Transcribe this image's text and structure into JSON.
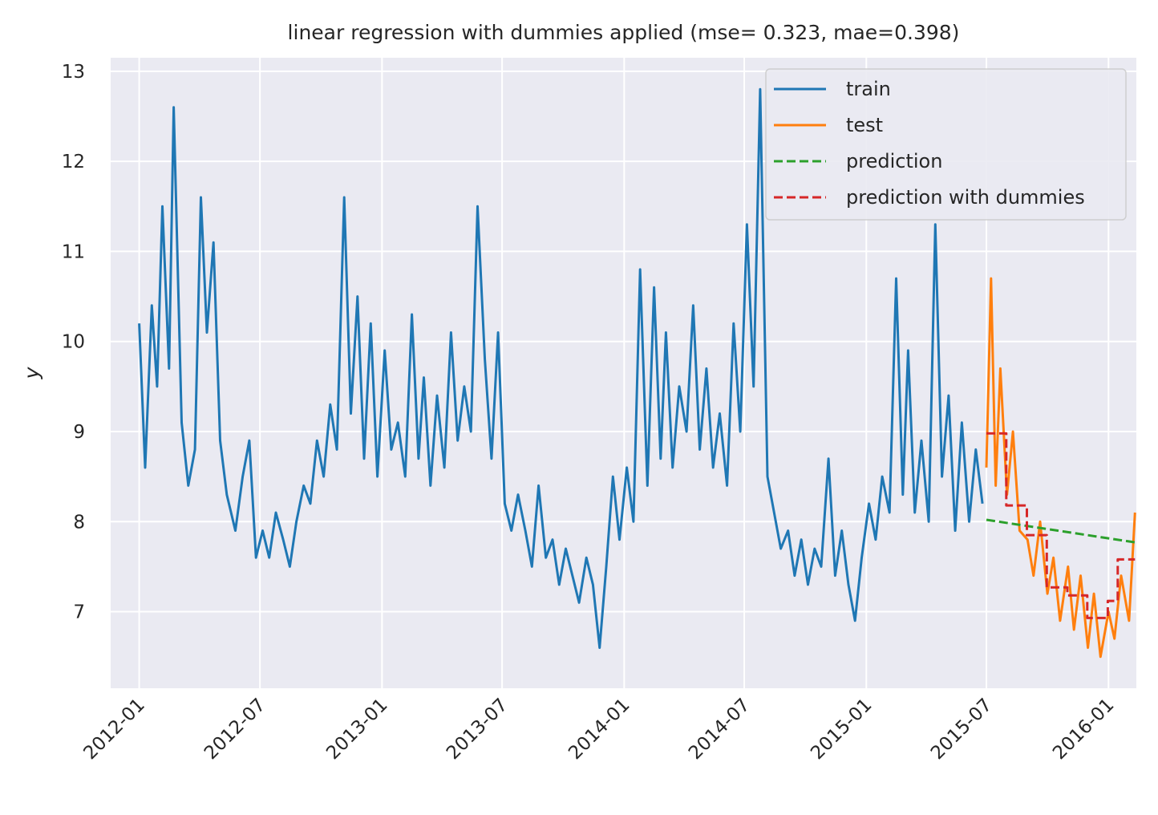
{
  "chart_data": {
    "type": "line",
    "title": "linear regression with dummies applied (mse= 0.323, mae=0.398)",
    "xlabel": "",
    "ylabel": "y",
    "ylim": [
      6.15,
      13.15
    ],
    "xlim": [
      "2011-11-19",
      "2016-02-12"
    ],
    "grid": true,
    "legend_position": "top-right",
    "x_ticks": [
      "2012-01",
      "2012-07",
      "2013-01",
      "2013-07",
      "2014-01",
      "2014-07",
      "2015-01",
      "2015-07",
      "2016-01"
    ],
    "y_ticks": [
      7,
      8,
      9,
      10,
      11,
      12,
      13
    ],
    "series": [
      {
        "name": "train",
        "color": "#1f77b4",
        "style": "solid",
        "points": [
          [
            "2012-01-01",
            10.2
          ],
          [
            "2012-01-10",
            8.6
          ],
          [
            "2012-01-20",
            10.4
          ],
          [
            "2012-01-28",
            9.5
          ],
          [
            "2012-02-05",
            11.5
          ],
          [
            "2012-02-15",
            9.7
          ],
          [
            "2012-02-22",
            12.6
          ],
          [
            "2012-03-05",
            9.1
          ],
          [
            "2012-03-15",
            8.4
          ],
          [
            "2012-03-25",
            8.8
          ],
          [
            "2012-04-03",
            11.6
          ],
          [
            "2012-04-12",
            10.1
          ],
          [
            "2012-04-22",
            11.1
          ],
          [
            "2012-05-02",
            8.9
          ],
          [
            "2012-05-12",
            8.3
          ],
          [
            "2012-05-25",
            7.9
          ],
          [
            "2012-06-05",
            8.5
          ],
          [
            "2012-06-15",
            8.9
          ],
          [
            "2012-06-25",
            7.6
          ],
          [
            "2012-07-05",
            7.9
          ],
          [
            "2012-07-15",
            7.6
          ],
          [
            "2012-07-25",
            8.1
          ],
          [
            "2012-08-05",
            7.8
          ],
          [
            "2012-08-15",
            7.5
          ],
          [
            "2012-08-25",
            8.0
          ],
          [
            "2012-09-05",
            8.4
          ],
          [
            "2012-09-15",
            8.2
          ],
          [
            "2012-09-25",
            8.9
          ],
          [
            "2012-10-05",
            8.5
          ],
          [
            "2012-10-15",
            9.3
          ],
          [
            "2012-10-25",
            8.8
          ],
          [
            "2012-11-05",
            11.6
          ],
          [
            "2012-11-15",
            9.2
          ],
          [
            "2012-11-25",
            10.5
          ],
          [
            "2012-12-05",
            8.7
          ],
          [
            "2012-12-15",
            10.2
          ],
          [
            "2012-12-25",
            8.5
          ],
          [
            "2013-01-05",
            9.9
          ],
          [
            "2013-01-15",
            8.8
          ],
          [
            "2013-01-25",
            9.1
          ],
          [
            "2013-02-05",
            8.5
          ],
          [
            "2013-02-15",
            10.3
          ],
          [
            "2013-02-25",
            8.7
          ],
          [
            "2013-03-05",
            9.6
          ],
          [
            "2013-03-15",
            8.4
          ],
          [
            "2013-03-25",
            9.4
          ],
          [
            "2013-04-05",
            8.6
          ],
          [
            "2013-04-15",
            10.1
          ],
          [
            "2013-04-25",
            8.9
          ],
          [
            "2013-05-05",
            9.5
          ],
          [
            "2013-05-15",
            9.0
          ],
          [
            "2013-05-25",
            11.5
          ],
          [
            "2013-06-05",
            9.8
          ],
          [
            "2013-06-15",
            8.7
          ],
          [
            "2013-06-25",
            10.1
          ],
          [
            "2013-07-05",
            8.2
          ],
          [
            "2013-07-15",
            7.9
          ],
          [
            "2013-07-25",
            8.3
          ],
          [
            "2013-08-05",
            7.9
          ],
          [
            "2013-08-15",
            7.5
          ],
          [
            "2013-08-25",
            8.4
          ],
          [
            "2013-09-05",
            7.6
          ],
          [
            "2013-09-15",
            7.8
          ],
          [
            "2013-09-25",
            7.3
          ],
          [
            "2013-10-05",
            7.7
          ],
          [
            "2013-10-15",
            7.4
          ],
          [
            "2013-10-25",
            7.1
          ],
          [
            "2013-11-05",
            7.6
          ],
          [
            "2013-11-15",
            7.3
          ],
          [
            "2013-11-25",
            6.6
          ],
          [
            "2013-12-05",
            7.5
          ],
          [
            "2013-12-15",
            8.5
          ],
          [
            "2013-12-25",
            7.8
          ],
          [
            "2014-01-05",
            8.6
          ],
          [
            "2014-01-15",
            8.0
          ],
          [
            "2014-01-25",
            10.8
          ],
          [
            "2014-02-05",
            8.4
          ],
          [
            "2014-02-15",
            10.6
          ],
          [
            "2014-02-25",
            8.7
          ],
          [
            "2014-03-05",
            10.1
          ],
          [
            "2014-03-15",
            8.6
          ],
          [
            "2014-03-25",
            9.5
          ],
          [
            "2014-04-05",
            9.0
          ],
          [
            "2014-04-15",
            10.4
          ],
          [
            "2014-04-25",
            8.8
          ],
          [
            "2014-05-05",
            9.7
          ],
          [
            "2014-05-15",
            8.6
          ],
          [
            "2014-05-25",
            9.2
          ],
          [
            "2014-06-05",
            8.4
          ],
          [
            "2014-06-15",
            10.2
          ],
          [
            "2014-06-25",
            9.0
          ],
          [
            "2014-07-05",
            11.3
          ],
          [
            "2014-07-15",
            9.5
          ],
          [
            "2014-07-25",
            12.8
          ],
          [
            "2014-08-05",
            8.5
          ],
          [
            "2014-08-15",
            8.1
          ],
          [
            "2014-08-25",
            7.7
          ],
          [
            "2014-09-05",
            7.9
          ],
          [
            "2014-09-15",
            7.4
          ],
          [
            "2014-09-25",
            7.8
          ],
          [
            "2014-10-05",
            7.3
          ],
          [
            "2014-10-15",
            7.7
          ],
          [
            "2014-10-25",
            7.5
          ],
          [
            "2014-11-05",
            8.7
          ],
          [
            "2014-11-15",
            7.4
          ],
          [
            "2014-11-25",
            7.9
          ],
          [
            "2014-12-05",
            7.3
          ],
          [
            "2014-12-15",
            6.9
          ],
          [
            "2014-12-25",
            7.6
          ],
          [
            "2015-01-05",
            8.2
          ],
          [
            "2015-01-15",
            7.8
          ],
          [
            "2015-01-25",
            8.5
          ],
          [
            "2015-02-05",
            8.1
          ],
          [
            "2015-02-15",
            10.7
          ],
          [
            "2015-02-25",
            8.3
          ],
          [
            "2015-03-05",
            9.9
          ],
          [
            "2015-03-15",
            8.1
          ],
          [
            "2015-03-25",
            8.9
          ],
          [
            "2015-04-05",
            8.0
          ],
          [
            "2015-04-15",
            11.3
          ],
          [
            "2015-04-25",
            8.5
          ],
          [
            "2015-05-05",
            9.4
          ],
          [
            "2015-05-15",
            7.9
          ],
          [
            "2015-05-25",
            9.1
          ],
          [
            "2015-06-05",
            8.0
          ],
          [
            "2015-06-15",
            8.8
          ],
          [
            "2015-06-25",
            8.2
          ]
        ]
      },
      {
        "name": "test",
        "color": "#ff7f0e",
        "style": "solid",
        "points": [
          [
            "2015-07-01",
            8.6
          ],
          [
            "2015-07-08",
            10.7
          ],
          [
            "2015-07-15",
            8.4
          ],
          [
            "2015-07-22",
            9.7
          ],
          [
            "2015-08-01",
            8.3
          ],
          [
            "2015-08-10",
            9.0
          ],
          [
            "2015-08-20",
            7.9
          ],
          [
            "2015-09-01",
            7.8
          ],
          [
            "2015-09-10",
            7.4
          ],
          [
            "2015-09-20",
            8.0
          ],
          [
            "2015-10-01",
            7.2
          ],
          [
            "2015-10-10",
            7.6
          ],
          [
            "2015-10-20",
            6.9
          ],
          [
            "2015-11-01",
            7.5
          ],
          [
            "2015-11-10",
            6.8
          ],
          [
            "2015-11-20",
            7.4
          ],
          [
            "2015-12-01",
            6.6
          ],
          [
            "2015-12-10",
            7.2
          ],
          [
            "2015-12-20",
            6.5
          ],
          [
            "2016-01-01",
            7.0
          ],
          [
            "2016-01-10",
            6.7
          ],
          [
            "2016-01-20",
            7.4
          ],
          [
            "2016-02-01",
            6.9
          ],
          [
            "2016-02-10",
            8.1
          ]
        ]
      },
      {
        "name": "prediction",
        "color": "#2ca02c",
        "style": "dashed",
        "points": [
          [
            "2015-07-01",
            8.02
          ],
          [
            "2016-02-10",
            7.77
          ]
        ]
      },
      {
        "name": "prediction with dummies",
        "color": "#d62728",
        "style": "dashed",
        "points": [
          [
            "2015-07-01",
            8.98
          ],
          [
            "2015-07-31",
            8.98
          ],
          [
            "2015-07-31",
            8.18
          ],
          [
            "2015-08-31",
            8.18
          ],
          [
            "2015-08-31",
            7.85
          ],
          [
            "2015-09-30",
            7.85
          ],
          [
            "2015-09-30",
            7.27
          ],
          [
            "2015-10-31",
            7.27
          ],
          [
            "2015-10-31",
            7.18
          ],
          [
            "2015-11-30",
            7.18
          ],
          [
            "2015-11-30",
            6.93
          ],
          [
            "2015-12-31",
            6.93
          ],
          [
            "2015-12-31",
            7.12
          ],
          [
            "2016-01-15",
            7.12
          ],
          [
            "2016-01-15",
            7.58
          ],
          [
            "2016-02-10",
            7.58
          ]
        ]
      }
    ]
  }
}
